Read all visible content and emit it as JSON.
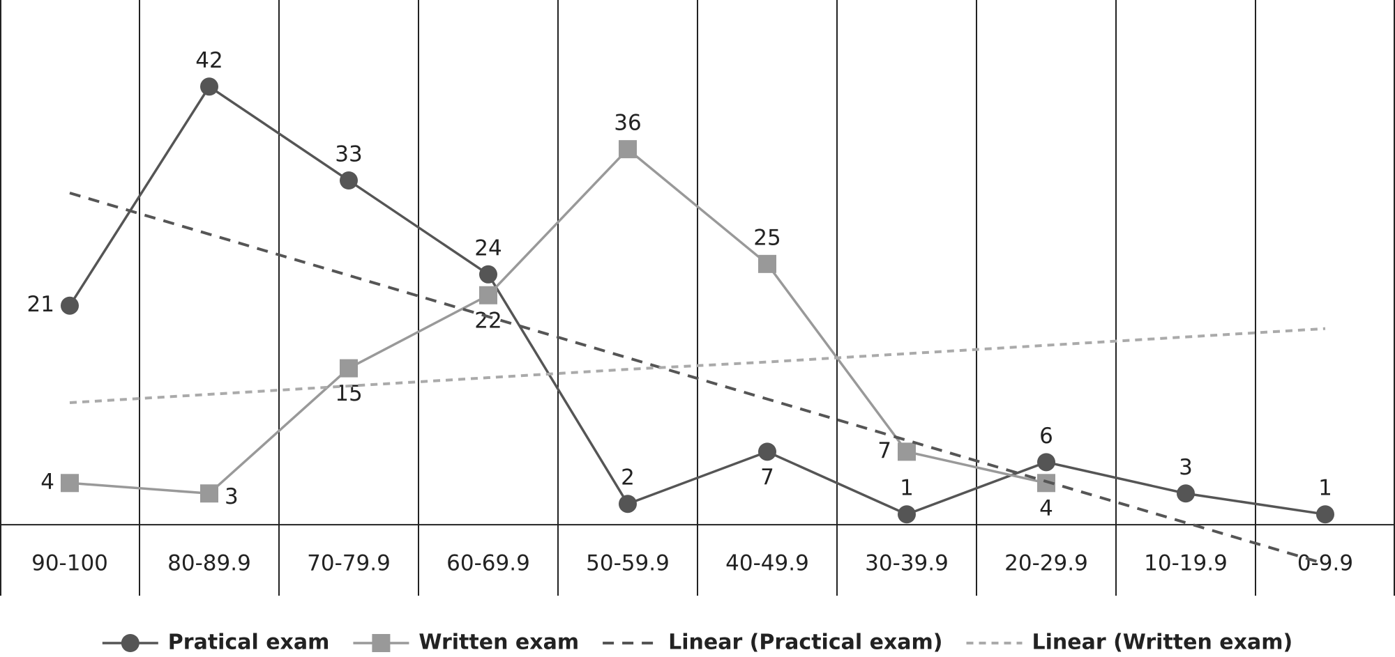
{
  "chart_data": {
    "type": "line",
    "categories": [
      "90-100",
      "80-89.9",
      "70-79.9",
      "60-69.9",
      "50-59.9",
      "40-49.9",
      "30-39.9",
      "20-29.9",
      "10-19.9",
      "0-9.9"
    ],
    "series": [
      {
        "name": "Pratical exam",
        "color": "#555555",
        "marker": "circle",
        "values": [
          21,
          42,
          33,
          24,
          2,
          7,
          1,
          6,
          3,
          1
        ]
      },
      {
        "name": "Written exam",
        "color": "#999999",
        "marker": "square",
        "values": [
          4,
          3,
          15,
          22,
          36,
          25,
          7,
          4,
          null,
          null
        ]
      },
      {
        "name": "Linear (Practical exam)",
        "color": "#555555",
        "dash": "16,12",
        "values": [
          31.8,
          27.85,
          23.9,
          19.95,
          16,
          12.05,
          8.1,
          4.15,
          0.2,
          -3.75
        ]
      },
      {
        "name": "Linear (Written exam)",
        "color": "#aaaaaa",
        "dash": "10,8",
        "values": [
          11.7,
          12.5,
          13.3,
          14.1,
          14.9,
          15.6,
          16.4,
          17.2,
          18.0,
          18.8
        ]
      }
    ],
    "ylim": [
      -6.8,
      50.3
    ],
    "data_labels": true,
    "legend": "bottom"
  }
}
